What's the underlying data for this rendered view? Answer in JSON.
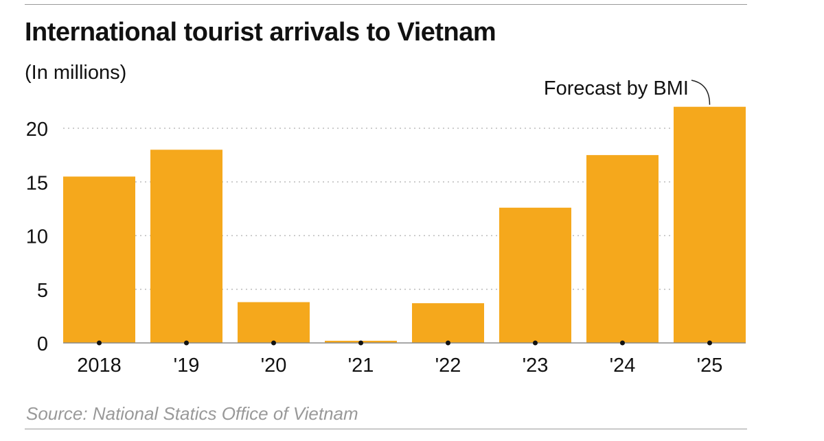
{
  "title": "International tourist arrivals to Vietnam",
  "subtitle": "(In millions)",
  "source": "Source: National Statics Office of Vietnam",
  "chart_data": {
    "type": "bar",
    "title": "International tourist arrivals to Vietnam",
    "ylabel": "(In millions)",
    "xlabel": "",
    "categories": [
      "2018",
      "'19",
      "'20",
      "'21",
      "'22",
      "'23",
      "'24",
      "'25"
    ],
    "values": [
      15.5,
      18.0,
      3.8,
      0.2,
      3.7,
      12.6,
      17.5,
      22.0
    ],
    "ylim": [
      0,
      22.5
    ],
    "yticks": [
      0,
      5,
      10,
      15,
      20
    ],
    "grid": "horizontal dotted",
    "bar_color": "#F5A81C",
    "annotations": [
      {
        "text": "Forecast by BMI",
        "category": "'25"
      }
    ]
  }
}
